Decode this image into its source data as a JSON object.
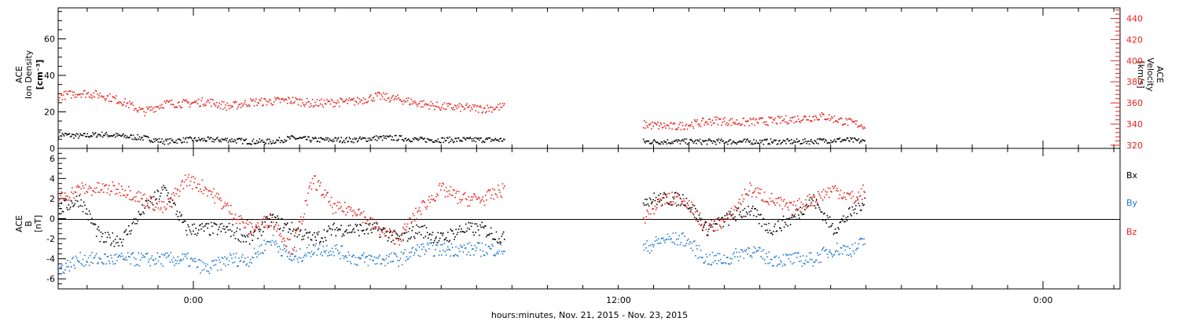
{
  "colors": {
    "black": "#000000",
    "red": "#e8221c",
    "blue": "#1f78d1"
  },
  "chart_data": [
    {
      "type": "scatter",
      "panel": "ion-density-velocity",
      "ylabel_left": [
        "ACE",
        "Ion Density",
        "[cm⁻³]"
      ],
      "ylabel_right": [
        "ACE",
        "Velocity",
        "[km/s]"
      ],
      "ylim_left": [
        0,
        77
      ],
      "ylim_right": [
        317,
        450
      ],
      "yticks_left": [
        0,
        20,
        40,
        60
      ],
      "yticks_right": [
        320,
        340,
        360,
        380,
        400,
        420,
        440
      ],
      "series": [
        {
          "axis": "left",
          "color": "black",
          "gaps": [
            [
              0.42,
              0.55
            ]
          ],
          "x": [
            0.0,
            0.02,
            0.04,
            0.06,
            0.08,
            0.1,
            0.12,
            0.14,
            0.16,
            0.18,
            0.2,
            0.22,
            0.24,
            0.26,
            0.28,
            0.3,
            0.32,
            0.34,
            0.36,
            0.38,
            0.42,
            0.55,
            0.58,
            0.62,
            0.66,
            0.7,
            0.74,
            0.76
          ],
          "values": [
            8,
            7,
            8,
            7,
            6,
            4,
            5,
            5,
            5,
            4,
            4,
            6,
            5,
            5,
            5,
            6,
            6,
            5,
            5,
            5,
            5,
            4,
            4,
            4,
            4,
            4,
            5,
            4
          ]
        },
        {
          "axis": "right",
          "color": "red",
          "gaps": [
            [
              0.42,
              0.55
            ]
          ],
          "x": [
            0.0,
            0.02,
            0.04,
            0.06,
            0.08,
            0.1,
            0.12,
            0.14,
            0.16,
            0.18,
            0.2,
            0.22,
            0.24,
            0.26,
            0.28,
            0.3,
            0.32,
            0.34,
            0.36,
            0.38,
            0.4,
            0.42,
            0.55,
            0.58,
            0.6,
            0.62,
            0.64,
            0.66,
            0.68,
            0.7,
            0.72,
            0.74,
            0.76
          ],
          "values": [
            367,
            370,
            368,
            362,
            352,
            360,
            360,
            362,
            357,
            361,
            362,
            363,
            360,
            361,
            362,
            367,
            364,
            360,
            357,
            356,
            355,
            357,
            340,
            338,
            341,
            344,
            342,
            343,
            344,
            346,
            348,
            343,
            339
          ]
        }
      ]
    },
    {
      "type": "scatter",
      "panel": "magnetic-field",
      "ylabel": [
        "ACE",
        "B",
        "[nT]"
      ],
      "ylim": [
        -7,
        7
      ],
      "yticks": [
        -6,
        -4,
        -2,
        0,
        2,
        4,
        6
      ],
      "legend": [
        "Bx",
        "By",
        "Bz"
      ],
      "series": [
        {
          "name": "Bx",
          "color": "black",
          "gaps": [
            [
              0.42,
              0.55
            ]
          ],
          "x": [
            0.0,
            0.02,
            0.04,
            0.06,
            0.08,
            0.1,
            0.12,
            0.14,
            0.16,
            0.18,
            0.2,
            0.22,
            0.24,
            0.26,
            0.28,
            0.3,
            0.32,
            0.34,
            0.36,
            0.38,
            0.4,
            0.42,
            0.55,
            0.57,
            0.59,
            0.61,
            0.63,
            0.65,
            0.67,
            0.69,
            0.71,
            0.73,
            0.75,
            0.76
          ],
          "values": [
            1,
            2,
            -2,
            -2,
            1,
            3,
            -1,
            -1,
            -1,
            -2,
            0,
            -1,
            -2,
            -1,
            -1,
            -1,
            -2,
            -1,
            -2,
            -1,
            -1,
            -2,
            2,
            2,
            2,
            -1,
            0,
            1,
            -1,
            0,
            2,
            -1,
            1,
            2
          ]
        },
        {
          "name": "By",
          "color": "blue",
          "gaps": [
            [
              0.42,
              0.55
            ]
          ],
          "x": [
            0.0,
            0.02,
            0.04,
            0.06,
            0.08,
            0.1,
            0.12,
            0.14,
            0.16,
            0.18,
            0.2,
            0.22,
            0.24,
            0.26,
            0.28,
            0.3,
            0.32,
            0.34,
            0.36,
            0.38,
            0.4,
            0.42,
            0.55,
            0.57,
            0.59,
            0.61,
            0.63,
            0.65,
            0.67,
            0.69,
            0.71,
            0.73,
            0.75,
            0.76
          ],
          "values": [
            -5,
            -4,
            -4,
            -4,
            -4,
            -4,
            -4,
            -5,
            -4,
            -4,
            -2,
            -4,
            -3,
            -3,
            -4,
            -4,
            -4,
            -3,
            -3,
            -3,
            -3,
            -3,
            -3,
            -2,
            -2,
            -4,
            -4,
            -3,
            -4,
            -4,
            -4,
            -3,
            -3,
            -2
          ]
        },
        {
          "name": "Bz",
          "color": "red",
          "gaps": [
            [
              0.42,
              0.55
            ]
          ],
          "x": [
            0.0,
            0.02,
            0.04,
            0.06,
            0.08,
            0.1,
            0.12,
            0.14,
            0.16,
            0.18,
            0.2,
            0.22,
            0.24,
            0.26,
            0.28,
            0.3,
            0.32,
            0.34,
            0.36,
            0.38,
            0.4,
            0.42,
            0.55,
            0.57,
            0.59,
            0.61,
            0.63,
            0.65,
            0.67,
            0.69,
            0.71,
            0.73,
            0.75,
            0.76
          ],
          "values": [
            2,
            3,
            3,
            3,
            2,
            1,
            4,
            3,
            1,
            -1,
            0,
            -3,
            4,
            1,
            1,
            -1,
            -2,
            1,
            3,
            2,
            2,
            3,
            0,
            2,
            2,
            -1,
            0,
            3,
            2,
            1,
            2,
            3,
            2,
            3
          ]
        }
      ]
    }
  ],
  "xaxis": {
    "tick_labels": [
      "0:00",
      "12:00",
      "0:00"
    ],
    "xlabel": "hours:minutes, Nov. 21, 2015 - Nov. 23, 2015"
  }
}
